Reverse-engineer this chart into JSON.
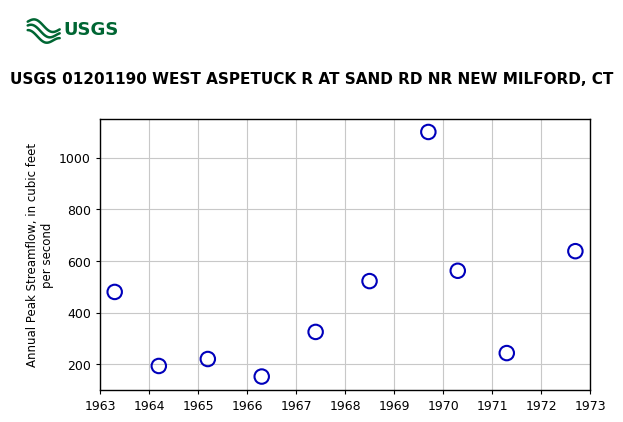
{
  "title": "USGS 01201190 WEST ASPETUCK R AT SAND RD NR NEW MILFORD, CT",
  "ylabel": "Annual Peak Streamflow, in cubic feet\nper second",
  "years": [
    1963.3,
    1964.2,
    1965.2,
    1966.3,
    1967.4,
    1968.5,
    1969.7,
    1970.3,
    1971.3,
    1972.7
  ],
  "values": [
    480,
    193,
    220,
    152,
    325,
    522,
    1100,
    562,
    243,
    638
  ],
  "xlim": [
    1963,
    1973
  ],
  "ylim": [
    100,
    1150
  ],
  "xticks": [
    1963,
    1964,
    1965,
    1966,
    1967,
    1968,
    1969,
    1970,
    1971,
    1972,
    1973
  ],
  "yticks": [
    200,
    400,
    600,
    800,
    1000
  ],
  "marker_color": "#0000bb",
  "marker_size": 6,
  "marker_linewidth": 1.5,
  "grid_color": "#c8c8c8",
  "header_bg_color": "#006633",
  "plot_bg_color": "#ffffff",
  "fig_bg_color": "#ffffff",
  "title_fontsize": 11,
  "ylabel_fontsize": 8.5,
  "tick_fontsize": 9
}
